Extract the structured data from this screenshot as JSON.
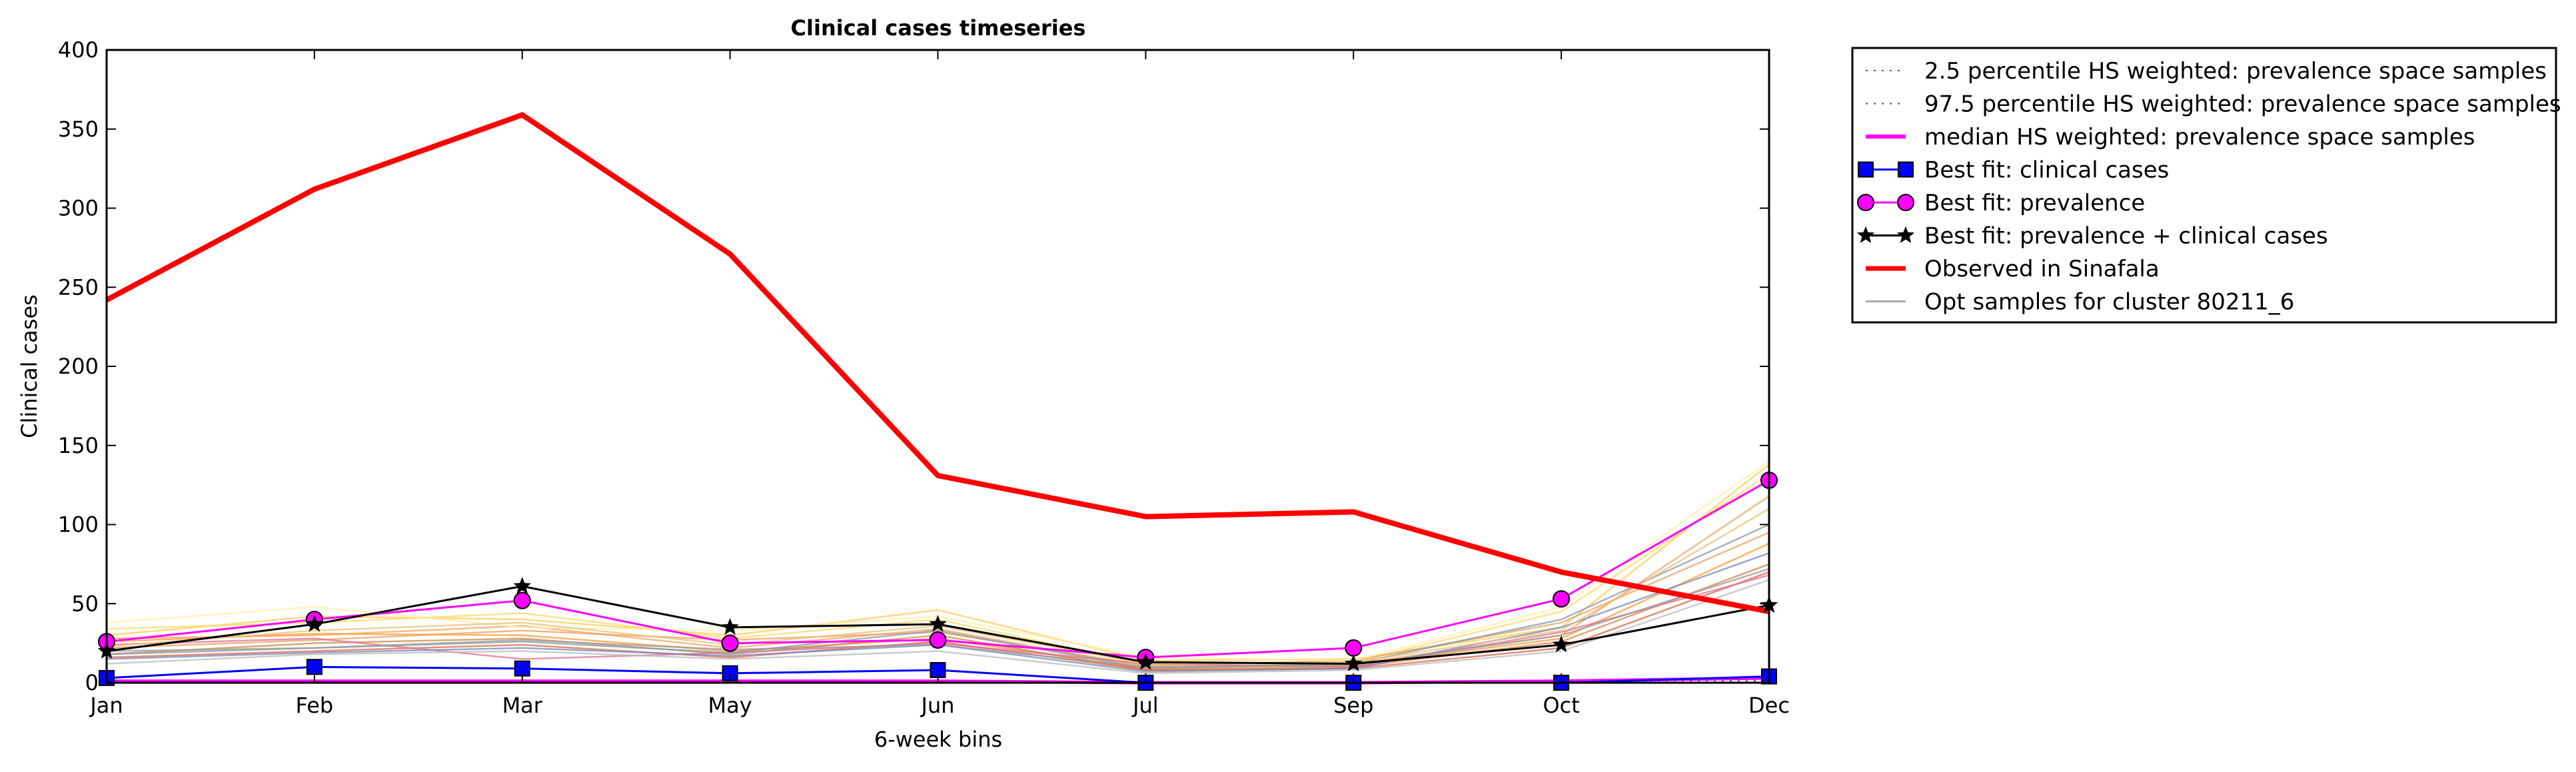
{
  "chart_data": {
    "type": "line",
    "title": "Clinical cases timeseries",
    "xlabel": "6-week bins",
    "ylabel": "Clinical cases",
    "categories": [
      "Jan",
      "Feb",
      "Mar",
      "May",
      "Jun",
      "Jul",
      "Sep",
      "Oct",
      "Dec"
    ],
    "ylim": [
      0,
      400
    ],
    "yticks": [
      "0",
      "50",
      "100",
      "150",
      "200",
      "250",
      "300",
      "350",
      "400"
    ],
    "grid": false,
    "legend_position": "outside-right",
    "legend": [
      {
        "label": "2.5 percentile HS weighted: prevalence space samples",
        "style": "dotted",
        "color": "#555555"
      },
      {
        "label": "97.5 percentile HS weighted: prevalence space samples",
        "style": "dotted",
        "color": "#555555"
      },
      {
        "label": "median HS weighted: prevalence space samples",
        "style": "solid",
        "color": "#ff00ff"
      },
      {
        "label": "Best fit: clinical cases",
        "style": "square-marker",
        "color": "#0000ff"
      },
      {
        "label": "Best fit: prevalence",
        "style": "circle-marker",
        "color": "#ff00ff"
      },
      {
        "label": "Best fit: prevalence + clinical cases",
        "style": "star-marker",
        "color": "#000000"
      },
      {
        "label": "Observed in Sinafala",
        "style": "thick",
        "color": "#ff0000"
      },
      {
        "label": "Opt samples for cluster 80211_6",
        "style": "thin",
        "color": "#999999"
      }
    ],
    "series": [
      {
        "name": "2.5 percentile HS weighted: prevalence space samples",
        "color": "#555555",
        "values": [
          0,
          0,
          0,
          0,
          0,
          0,
          0,
          0,
          1
        ]
      },
      {
        "name": "97.5 percentile HS weighted: prevalence space samples",
        "color": "#555555",
        "values": [
          1,
          1,
          1,
          1,
          1,
          0,
          0,
          1,
          2
        ]
      },
      {
        "name": "median HS weighted: prevalence space samples",
        "color": "#ff00ff",
        "values": [
          1,
          1,
          1,
          1,
          1,
          0,
          0,
          1,
          3
        ]
      },
      {
        "name": "Best fit: clinical cases",
        "color": "#0000ff",
        "values": [
          3,
          10,
          9,
          6,
          8,
          0,
          0,
          0,
          4
        ]
      },
      {
        "name": "Best fit: prevalence",
        "color": "#ff00ff",
        "values": [
          26,
          40,
          52,
          25,
          27,
          16,
          22,
          53,
          128
        ]
      },
      {
        "name": "Best fit: prevalence + clinical cases",
        "color": "#000000",
        "values": [
          20,
          37,
          61,
          35,
          37,
          13,
          12,
          24,
          49
        ]
      },
      {
        "name": "Observed in Sinafala",
        "color": "#ff0000",
        "values": [
          242,
          312,
          359,
          271,
          131,
          105,
          108,
          70,
          45
        ]
      }
    ],
    "samples": [
      {
        "color": "#ffcc55",
        "values": [
          30,
          42,
          40,
          30,
          46,
          14,
          15,
          35,
          138
        ]
      },
      {
        "color": "#ffd966",
        "values": [
          34,
          38,
          44,
          28,
          40,
          12,
          13,
          45,
          132
        ]
      },
      {
        "color": "#f4a460",
        "values": [
          28,
          30,
          36,
          22,
          34,
          10,
          12,
          30,
          118
        ]
      },
      {
        "color": "#e8a060",
        "values": [
          22,
          27,
          33,
          27,
          32,
          11,
          14,
          38,
          95
        ]
      },
      {
        "color": "#ff9933",
        "values": [
          26,
          31,
          30,
          20,
          28,
          9,
          11,
          28,
          88
        ]
      },
      {
        "color": "#cc8844",
        "values": [
          18,
          25,
          28,
          18,
          30,
          8,
          10,
          26,
          75
        ]
      },
      {
        "color": "#dd6644",
        "values": [
          16,
          20,
          24,
          16,
          26,
          8,
          9,
          22,
          70
        ]
      },
      {
        "color": "#e07090",
        "values": [
          24,
          28,
          15,
          19,
          25,
          12,
          10,
          32,
          68
        ]
      },
      {
        "color": "#8899aa",
        "values": [
          18,
          22,
          26,
          19,
          33,
          9,
          12,
          40,
          100
        ]
      },
      {
        "color": "#7788bb",
        "values": [
          15,
          19,
          22,
          17,
          24,
          7,
          9,
          35,
          82
        ]
      },
      {
        "color": "#999999",
        "values": [
          20,
          22,
          27,
          21,
          24,
          10,
          11,
          30,
          72
        ]
      },
      {
        "color": "#bbbbbb",
        "values": [
          12,
          18,
          20,
          15,
          20,
          6,
          8,
          20,
          65
        ]
      },
      {
        "color": "#ffeeaa",
        "values": [
          38,
          48,
          35,
          33,
          42,
          16,
          14,
          48,
          140
        ]
      },
      {
        "color": "#e8c07a",
        "values": [
          23,
          33,
          38,
          24,
          36,
          12,
          13,
          33,
          110
        ]
      }
    ]
  }
}
